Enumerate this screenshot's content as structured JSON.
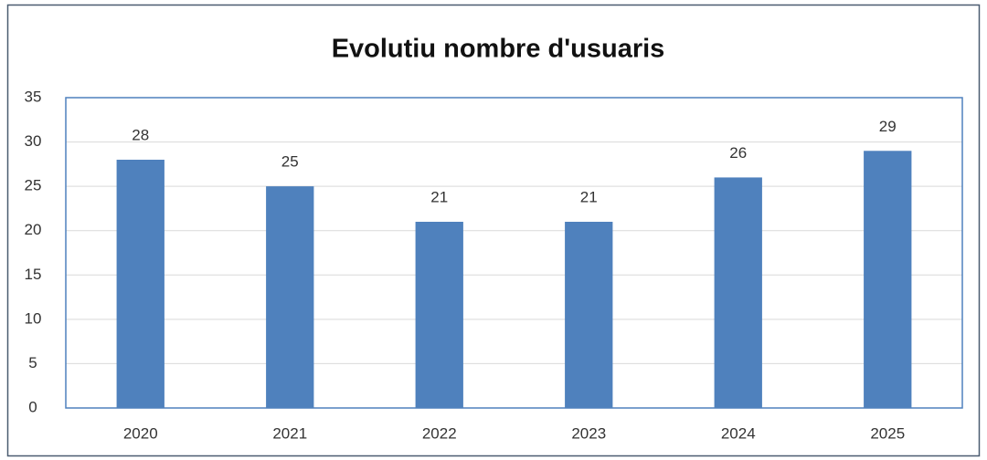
{
  "chart_data": {
    "type": "bar",
    "title": "Evolutiu nombre d'usuaris",
    "categories": [
      "2020",
      "2021",
      "2022",
      "2023",
      "2024",
      "2025"
    ],
    "values": [
      28,
      25,
      21,
      21,
      26,
      29
    ],
    "color": "#4f81bd",
    "ylim": [
      0,
      35
    ],
    "yticks": [
      0,
      5,
      10,
      15,
      20,
      25,
      30,
      35
    ],
    "grid": true,
    "data_labels": true
  }
}
